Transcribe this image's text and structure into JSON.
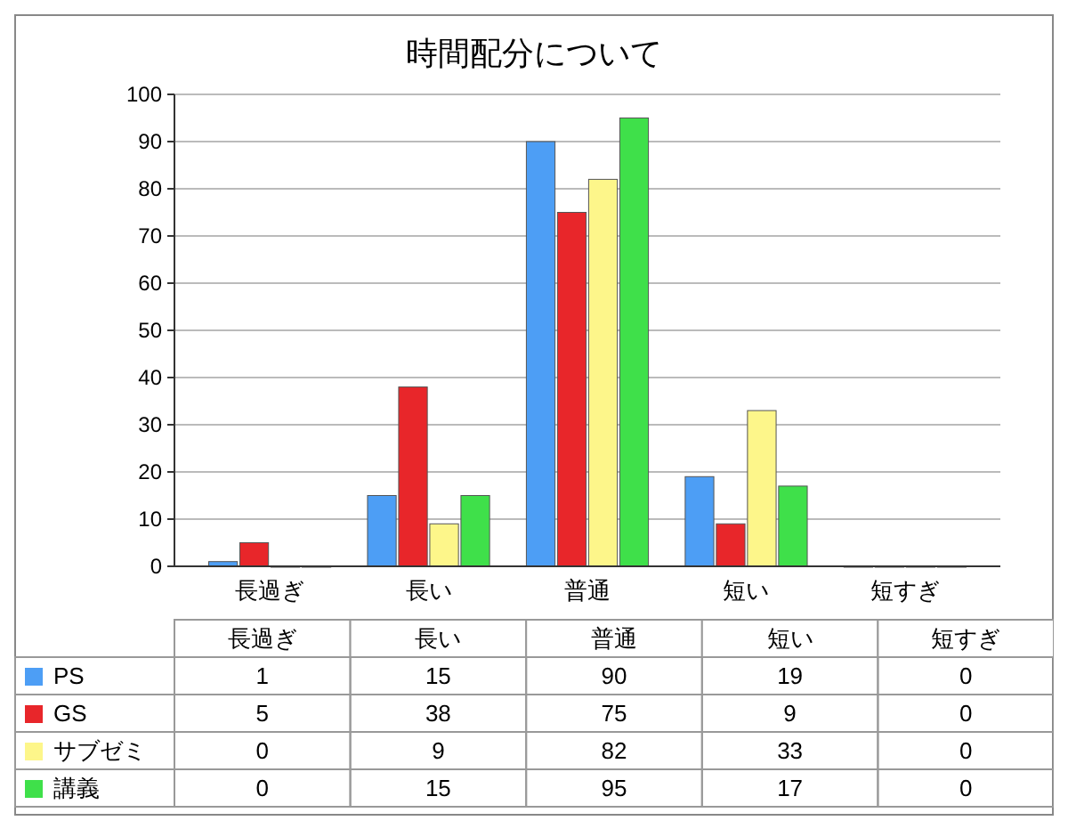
{
  "chart_data": {
    "type": "bar",
    "title": "時間配分について",
    "categories": [
      "長過ぎ",
      "長い",
      "普通",
      "短い",
      "短すぎ"
    ],
    "series": [
      {
        "name": "PS",
        "color": "#4d9ef5",
        "values": [
          1,
          15,
          90,
          19,
          0
        ]
      },
      {
        "name": "GS",
        "color": "#e8262a",
        "values": [
          5,
          38,
          75,
          9,
          0
        ]
      },
      {
        "name": "サブゼミ",
        "color": "#fdf68a",
        "values": [
          0,
          9,
          82,
          33,
          0
        ]
      },
      {
        "name": "講義",
        "color": "#3fe04a",
        "values": [
          0,
          15,
          95,
          17,
          0
        ]
      }
    ],
    "ylim": [
      0,
      100
    ],
    "yticks": [
      0,
      10,
      20,
      30,
      40,
      50,
      60,
      70,
      80,
      90,
      100
    ],
    "grid": "y",
    "legend": "bottom",
    "data_labels": true
  }
}
